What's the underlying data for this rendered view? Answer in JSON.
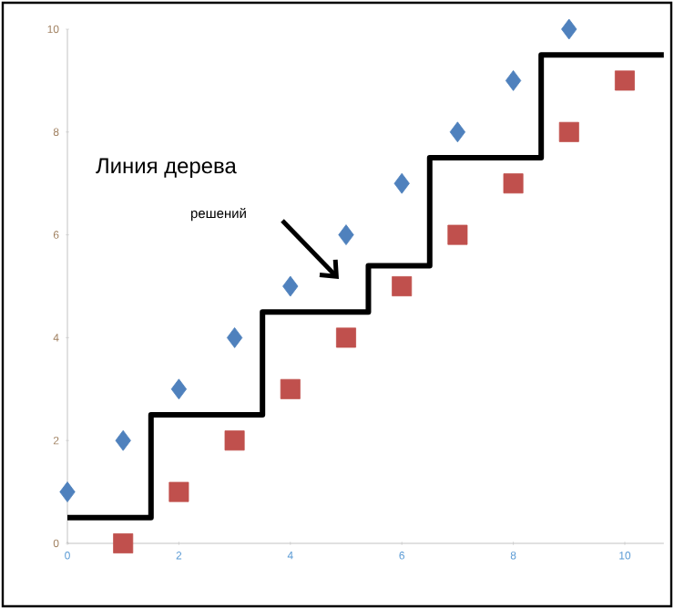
{
  "chart_data": {
    "type": "scatter",
    "annotations": [
      "Линия дерева",
      "решений"
    ],
    "series": [
      {
        "marker": "diamond",
        "color": "#4f81bd",
        "x": [
          0,
          1,
          2,
          3,
          4,
          5,
          6,
          7,
          8,
          9
        ],
        "values": [
          1,
          2,
          3,
          4,
          5,
          6,
          7,
          8,
          9,
          10
        ]
      },
      {
        "marker": "square",
        "color": "#c0504d",
        "x": [
          1,
          2,
          3,
          4,
          5,
          6,
          7,
          8,
          9,
          10
        ],
        "values": [
          0,
          1,
          2,
          3,
          4,
          5,
          6,
          7,
          8,
          9
        ]
      },
      {
        "type": "step",
        "marker": "none",
        "color": "#000000",
        "x": [
          0,
          1.5,
          3.5,
          5.4,
          6.5,
          8.5,
          10.7
        ],
        "values": [
          0.5,
          2.5,
          4.5,
          5.4,
          7.5,
          9.5,
          9.5
        ]
      }
    ],
    "xlim": [
      0,
      10.7
    ],
    "xticks": [
      0,
      2,
      4,
      6,
      8,
      10
    ],
    "ylim": [
      0,
      10
    ],
    "yticks": [
      0,
      2,
      4,
      6,
      8,
      10
    ],
    "grid": false
  }
}
